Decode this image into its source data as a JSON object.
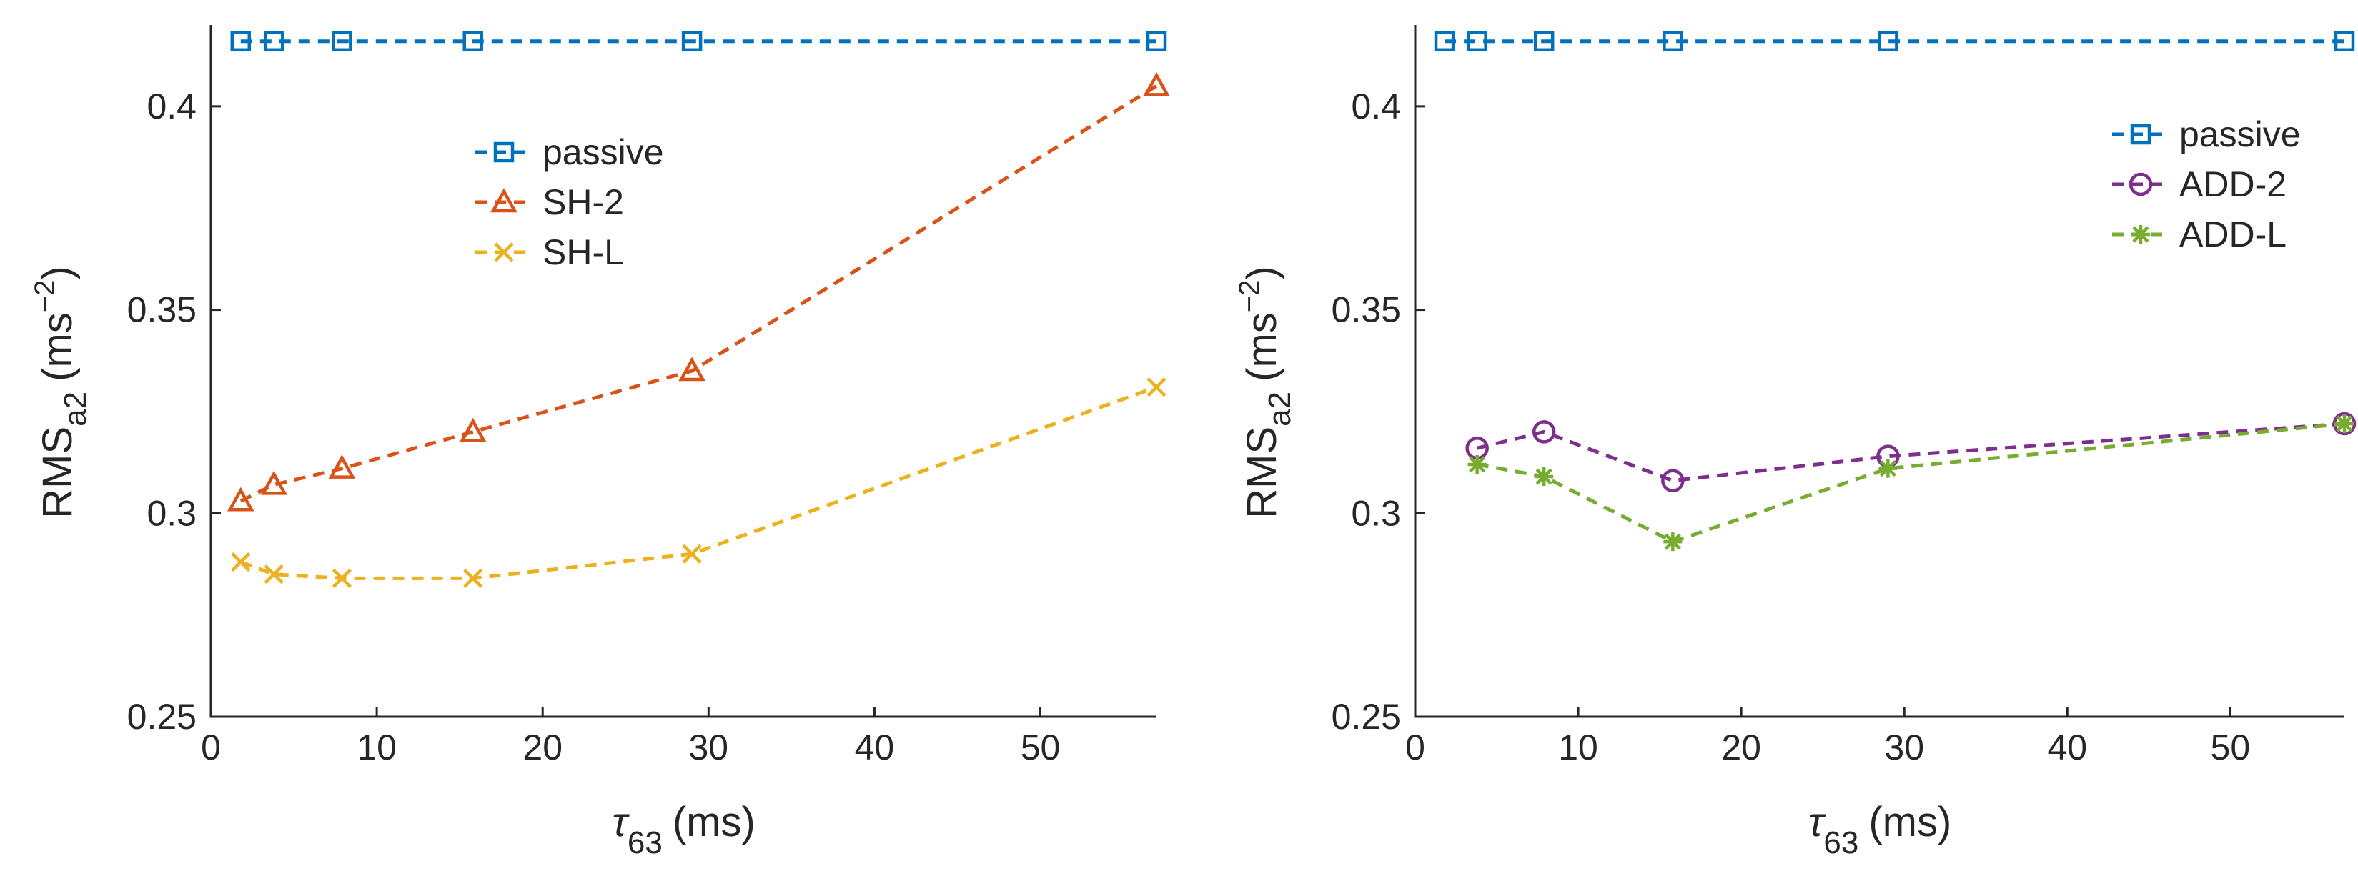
{
  "chart_data": [
    {
      "type": "line",
      "xlabel_symbol": "τ",
      "xlabel_subscript": "63",
      "xlabel_unit": "(ms)",
      "ylabel_main": "RMS",
      "ylabel_subscript": "a2",
      "ylabel_unit_open": "(ms",
      "ylabel_unit_exp": "−2",
      "ylabel_unit_close": ")",
      "xlim": [
        0,
        57
      ],
      "ylim": [
        0.25,
        0.42
      ],
      "xticks": [
        0,
        10,
        20,
        30,
        40,
        50
      ],
      "xtick_labels": [
        "0",
        "10",
        "20",
        "30",
        "40",
        "50"
      ],
      "yticks": [
        0.25,
        0.3,
        0.35,
        0.4
      ],
      "ytick_labels": [
        "0.25",
        "0.3",
        "0.35",
        "0.4"
      ],
      "legend_position": "upper-middle",
      "series": [
        {
          "name": "passive",
          "color": "#0072BD",
          "marker": "square",
          "x": [
            1.8,
            3.8,
            7.9,
            15.8,
            29,
            57
          ],
          "y": [
            0.416,
            0.416,
            0.416,
            0.416,
            0.416,
            0.416
          ]
        },
        {
          "name": "SH-2",
          "color": "#D95319",
          "marker": "triangle",
          "x": [
            1.8,
            3.8,
            7.9,
            15.8,
            29,
            57
          ],
          "y": [
            0.303,
            0.307,
            0.311,
            0.32,
            0.335,
            0.405
          ]
        },
        {
          "name": "SH-L",
          "color": "#EDB120",
          "marker": "x",
          "x": [
            1.8,
            3.8,
            7.9,
            15.8,
            29,
            57
          ],
          "y": [
            0.288,
            0.285,
            0.284,
            0.284,
            0.29,
            0.331
          ]
        }
      ]
    },
    {
      "type": "line",
      "xlabel_symbol": "τ",
      "xlabel_subscript": "63",
      "xlabel_unit": "(ms)",
      "ylabel_main": "RMS",
      "ylabel_subscript": "a2",
      "ylabel_unit_open": "(ms",
      "ylabel_unit_exp": "−2",
      "ylabel_unit_close": ")",
      "xlim": [
        0,
        57
      ],
      "ylim": [
        0.25,
        0.42
      ],
      "xticks": [
        0,
        10,
        20,
        30,
        40,
        50
      ],
      "xtick_labels": [
        "0",
        "10",
        "20",
        "30",
        "40",
        "50"
      ],
      "yticks": [
        0.25,
        0.3,
        0.35,
        0.4
      ],
      "ytick_labels": [
        "0.25",
        "0.3",
        "0.35",
        "0.4"
      ],
      "legend_position": "upper-right",
      "series": [
        {
          "name": "passive",
          "color": "#0072BD",
          "marker": "square",
          "x": [
            1.8,
            3.8,
            7.9,
            15.8,
            29,
            57
          ],
          "y": [
            0.416,
            0.416,
            0.416,
            0.416,
            0.416,
            0.416
          ]
        },
        {
          "name": "ADD-2",
          "color": "#7E2F8E",
          "marker": "circle",
          "x": [
            3.8,
            7.9,
            15.8,
            29,
            57
          ],
          "y": [
            0.316,
            0.32,
            0.308,
            0.314,
            0.322
          ]
        },
        {
          "name": "ADD-L",
          "color": "#77AC30",
          "marker": "asterisk",
          "x": [
            3.8,
            7.9,
            15.8,
            29,
            57
          ],
          "y": [
            0.312,
            0.309,
            0.293,
            0.311,
            0.322
          ]
        }
      ]
    }
  ]
}
